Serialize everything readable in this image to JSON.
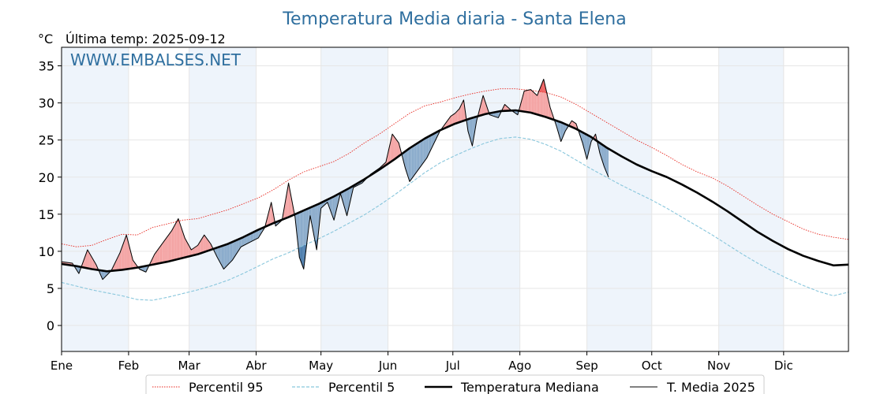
{
  "chart_data": {
    "type": "line",
    "title": "Temperatura Media diaria - Santa Elena",
    "unit": "°C",
    "last_temp_label": "Última temp: 2025-09-12",
    "watermark": "WWW.EMBALSES.NET",
    "ylim": [
      -3.5,
      37.5
    ],
    "yticks": [
      0,
      5,
      10,
      15,
      20,
      25,
      30,
      35
    ],
    "months": [
      "Ene",
      "Feb",
      "Mar",
      "Abr",
      "May",
      "Jun",
      "Jul",
      "Ago",
      "Sep",
      "Oct",
      "Nov",
      "Dic"
    ],
    "legend_position": "bottom",
    "colors": {
      "p95": "#e8261e",
      "p5": "#88c6dc",
      "median": "#000000",
      "current": "#000000",
      "above_fill": "#f4a3a3",
      "above_dark_fill": "#ee5f5f",
      "below_fill": "#8aabcb",
      "below_dark_fill": "#4f7fae",
      "band": "#eef4fb",
      "title": "#2f6f9f"
    },
    "series": [
      {
        "key": "p95",
        "name": "Percentil 95",
        "style": "dotted",
        "points": [
          [
            1,
            11.0
          ],
          [
            8,
            10.6
          ],
          [
            15,
            10.8
          ],
          [
            22,
            11.6
          ],
          [
            29,
            12.3
          ],
          [
            36,
            12.2
          ],
          [
            43,
            13.2
          ],
          [
            50,
            13.7
          ],
          [
            57,
            14.2
          ],
          [
            64,
            14.4
          ],
          [
            71,
            15.0
          ],
          [
            78,
            15.6
          ],
          [
            85,
            16.4
          ],
          [
            92,
            17.2
          ],
          [
            99,
            18.3
          ],
          [
            106,
            19.6
          ],
          [
            113,
            20.7
          ],
          [
            120,
            21.4
          ],
          [
            127,
            22.1
          ],
          [
            134,
            23.2
          ],
          [
            141,
            24.6
          ],
          [
            148,
            25.8
          ],
          [
            155,
            27.2
          ],
          [
            162,
            28.6
          ],
          [
            169,
            29.6
          ],
          [
            176,
            30.1
          ],
          [
            183,
            30.7
          ],
          [
            190,
            31.2
          ],
          [
            197,
            31.6
          ],
          [
            204,
            31.9
          ],
          [
            211,
            31.9
          ],
          [
            218,
            31.7
          ],
          [
            225,
            31.4
          ],
          [
            232,
            30.8
          ],
          [
            239,
            29.8
          ],
          [
            246,
            28.6
          ],
          [
            253,
            27.4
          ],
          [
            260,
            26.2
          ],
          [
            267,
            25.0
          ],
          [
            274,
            24.0
          ],
          [
            281,
            22.9
          ],
          [
            288,
            21.7
          ],
          [
            295,
            20.7
          ],
          [
            302,
            19.9
          ],
          [
            309,
            18.8
          ],
          [
            316,
            17.5
          ],
          [
            323,
            16.2
          ],
          [
            330,
            15.0
          ],
          [
            337,
            14.0
          ],
          [
            344,
            13.0
          ],
          [
            351,
            12.3
          ],
          [
            358,
            11.9
          ],
          [
            365,
            11.6
          ]
        ]
      },
      {
        "key": "p5",
        "name": "Percentil 5",
        "style": "dashed",
        "points": [
          [
            1,
            5.8
          ],
          [
            8,
            5.3
          ],
          [
            15,
            4.8
          ],
          [
            22,
            4.4
          ],
          [
            29,
            4.0
          ],
          [
            36,
            3.5
          ],
          [
            43,
            3.4
          ],
          [
            50,
            3.8
          ],
          [
            57,
            4.3
          ],
          [
            64,
            4.8
          ],
          [
            71,
            5.4
          ],
          [
            78,
            6.1
          ],
          [
            85,
            7.0
          ],
          [
            92,
            8.0
          ],
          [
            99,
            9.0
          ],
          [
            106,
            9.8
          ],
          [
            113,
            10.8
          ],
          [
            120,
            11.7
          ],
          [
            127,
            12.7
          ],
          [
            134,
            13.8
          ],
          [
            141,
            14.9
          ],
          [
            148,
            16.2
          ],
          [
            155,
            17.6
          ],
          [
            162,
            19.1
          ],
          [
            169,
            20.6
          ],
          [
            176,
            21.9
          ],
          [
            183,
            22.9
          ],
          [
            190,
            23.8
          ],
          [
            197,
            24.6
          ],
          [
            204,
            25.2
          ],
          [
            211,
            25.4
          ],
          [
            218,
            25.1
          ],
          [
            225,
            24.4
          ],
          [
            232,
            23.5
          ],
          [
            239,
            22.3
          ],
          [
            246,
            21.1
          ],
          [
            253,
            20.0
          ],
          [
            260,
            18.9
          ],
          [
            267,
            17.9
          ],
          [
            274,
            16.9
          ],
          [
            281,
            15.8
          ],
          [
            288,
            14.6
          ],
          [
            295,
            13.4
          ],
          [
            302,
            12.2
          ],
          [
            309,
            10.9
          ],
          [
            316,
            9.6
          ],
          [
            323,
            8.4
          ],
          [
            330,
            7.3
          ],
          [
            337,
            6.3
          ],
          [
            344,
            5.4
          ],
          [
            351,
            4.6
          ],
          [
            358,
            4.0
          ],
          [
            365,
            4.5
          ]
        ]
      },
      {
        "key": "median",
        "name": "Temperatura Mediana",
        "style": "solid-thick",
        "points": [
          [
            1,
            8.3
          ],
          [
            8,
            8.0
          ],
          [
            15,
            7.6
          ],
          [
            22,
            7.3
          ],
          [
            29,
            7.5
          ],
          [
            36,
            7.8
          ],
          [
            43,
            8.2
          ],
          [
            50,
            8.6
          ],
          [
            57,
            9.1
          ],
          [
            64,
            9.6
          ],
          [
            71,
            10.3
          ],
          [
            78,
            11.0
          ],
          [
            85,
            11.9
          ],
          [
            92,
            12.9
          ],
          [
            99,
            13.8
          ],
          [
            106,
            14.6
          ],
          [
            113,
            15.5
          ],
          [
            120,
            16.4
          ],
          [
            127,
            17.4
          ],
          [
            134,
            18.5
          ],
          [
            141,
            19.7
          ],
          [
            148,
            21.0
          ],
          [
            155,
            22.4
          ],
          [
            162,
            23.9
          ],
          [
            169,
            25.2
          ],
          [
            176,
            26.3
          ],
          [
            183,
            27.2
          ],
          [
            190,
            27.9
          ],
          [
            197,
            28.5
          ],
          [
            204,
            28.9
          ],
          [
            211,
            29.0
          ],
          [
            218,
            28.7
          ],
          [
            225,
            28.1
          ],
          [
            232,
            27.4
          ],
          [
            239,
            26.5
          ],
          [
            246,
            25.4
          ],
          [
            253,
            24.0
          ],
          [
            260,
            22.8
          ],
          [
            267,
            21.7
          ],
          [
            274,
            20.8
          ],
          [
            281,
            20.0
          ],
          [
            288,
            19.0
          ],
          [
            295,
            17.9
          ],
          [
            302,
            16.7
          ],
          [
            309,
            15.4
          ],
          [
            316,
            14.0
          ],
          [
            323,
            12.6
          ],
          [
            330,
            11.4
          ],
          [
            337,
            10.3
          ],
          [
            344,
            9.4
          ],
          [
            351,
            8.7
          ],
          [
            358,
            8.1
          ],
          [
            365,
            8.2
          ]
        ]
      },
      {
        "key": "current",
        "name": "T. Media 2025",
        "style": "solid-thin",
        "points": [
          [
            1,
            8.6
          ],
          [
            6,
            8.4
          ],
          [
            9,
            7.0
          ],
          [
            13,
            10.2
          ],
          [
            17,
            8.2
          ],
          [
            20,
            6.2
          ],
          [
            24,
            7.4
          ],
          [
            28,
            9.8
          ],
          [
            31,
            12.2
          ],
          [
            34,
            8.8
          ],
          [
            37,
            7.6
          ],
          [
            40,
            7.2
          ],
          [
            44,
            9.6
          ],
          [
            48,
            11.2
          ],
          [
            52,
            12.8
          ],
          [
            55,
            14.4
          ],
          [
            58,
            11.8
          ],
          [
            61,
            10.2
          ],
          [
            64,
            10.8
          ],
          [
            67,
            12.2
          ],
          [
            70,
            11.0
          ],
          [
            73,
            9.2
          ],
          [
            76,
            7.6
          ],
          [
            80,
            8.8
          ],
          [
            84,
            10.6
          ],
          [
            88,
            11.2
          ],
          [
            92,
            11.8
          ],
          [
            95,
            13.2
          ],
          [
            98,
            16.6
          ],
          [
            100,
            13.4
          ],
          [
            103,
            14.2
          ],
          [
            106,
            19.2
          ],
          [
            109,
            14.6
          ],
          [
            111,
            9.2
          ],
          [
            113,
            7.6
          ],
          [
            116,
            14.8
          ],
          [
            119,
            10.2
          ],
          [
            121,
            15.8
          ],
          [
            124,
            16.6
          ],
          [
            127,
            14.2
          ],
          [
            130,
            17.8
          ],
          [
            133,
            14.8
          ],
          [
            136,
            18.6
          ],
          [
            140,
            19.2
          ],
          [
            144,
            20.4
          ],
          [
            148,
            21.2
          ],
          [
            151,
            22.0
          ],
          [
            154,
            25.8
          ],
          [
            157,
            24.6
          ],
          [
            160,
            21.2
          ],
          [
            162,
            19.4
          ],
          [
            170,
            22.6
          ],
          [
            176,
            26.2
          ],
          [
            179,
            27.4
          ],
          [
            181,
            28.2
          ],
          [
            183,
            28.6
          ],
          [
            185,
            29.2
          ],
          [
            187,
            30.4
          ],
          [
            189,
            26.2
          ],
          [
            191,
            24.2
          ],
          [
            193,
            27.6
          ],
          [
            196,
            31.0
          ],
          [
            199,
            28.4
          ],
          [
            203,
            28.0
          ],
          [
            206,
            29.8
          ],
          [
            209,
            29.0
          ],
          [
            212,
            28.4
          ],
          [
            215,
            31.6
          ],
          [
            218,
            31.8
          ],
          [
            221,
            31.0
          ],
          [
            224,
            33.2
          ],
          [
            227,
            29.4
          ],
          [
            230,
            26.8
          ],
          [
            232,
            24.8
          ],
          [
            234,
            26.2
          ],
          [
            237,
            27.6
          ],
          [
            239,
            27.2
          ],
          [
            242,
            24.6
          ],
          [
            244,
            22.4
          ],
          [
            246,
            24.8
          ],
          [
            248,
            25.8
          ],
          [
            250,
            23.2
          ],
          [
            252,
            21.4
          ],
          [
            254,
            20.0
          ]
        ]
      }
    ]
  }
}
